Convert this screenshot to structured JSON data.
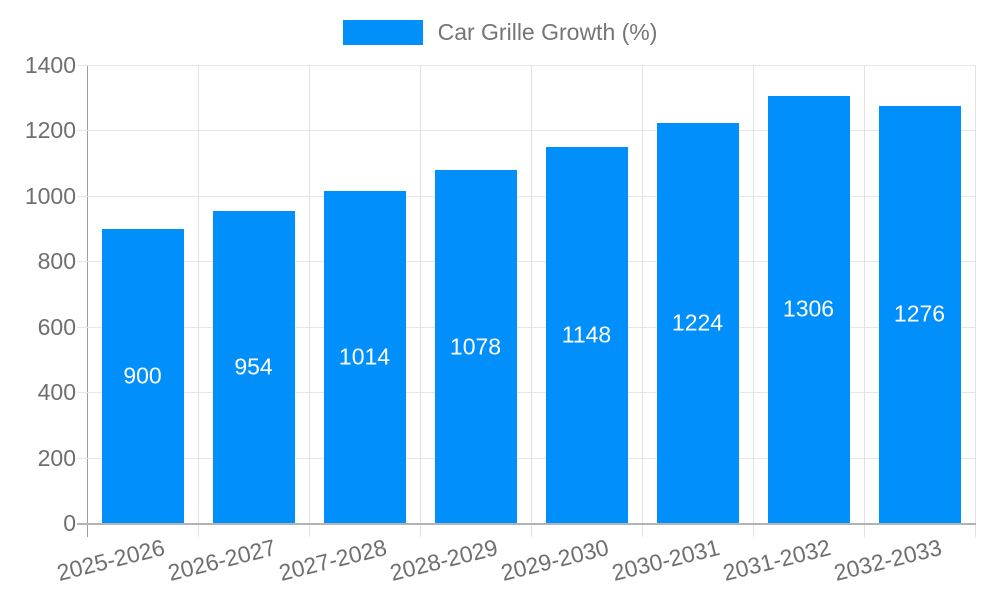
{
  "chart_data": {
    "type": "bar",
    "title": "",
    "xlabel": "",
    "ylabel": "",
    "categories": [
      "2025-2026",
      "2026-2027",
      "2027-2028",
      "2028-2029",
      "2029-2030",
      "2030-2031",
      "2031-2032",
      "2032-2033"
    ],
    "series": [
      {
        "name": "Car Grille Growth (%)",
        "values": [
          900,
          954,
          1014,
          1078,
          1148,
          1224,
          1306,
          1276
        ]
      }
    ],
    "ylim": [
      0,
      1400
    ],
    "yticks": [
      0,
      200,
      400,
      600,
      800,
      1000,
      1200,
      1400
    ],
    "grid": true,
    "legend_position": "top",
    "x_label_rotation_deg": -14,
    "colors": {
      "bar": "#008FFB",
      "bar_value_label": "#ffffff",
      "axis_label": "#6f6f6f",
      "legend_label": "#757575",
      "gridline": "#e7e7e7",
      "axis_line": "#b3b3b3"
    }
  },
  "legend": {
    "label": "Car Grille Growth (%)",
    "swatch_color": "#008FFB"
  }
}
